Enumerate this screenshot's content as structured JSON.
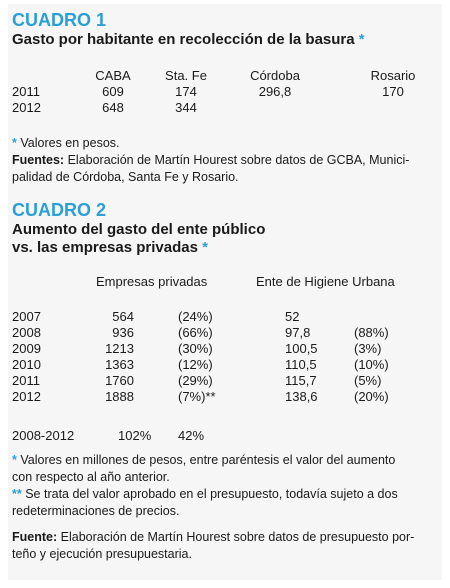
{
  "cuadro1": {
    "heading": "CUADRO 1",
    "title": "Gasto por habitante en recolección de la basura",
    "title_mark": "*",
    "columns": [
      "CABA",
      "Sta. Fe",
      "Córdoba",
      "Rosario"
    ],
    "rows": [
      {
        "year": "2011",
        "caba": "609",
        "stafe": "174",
        "cordoba": "296,8",
        "rosario": "170"
      },
      {
        "year": "2012",
        "caba": "648",
        "stafe": "344",
        "cordoba": "",
        "rosario": ""
      }
    ],
    "note_mark": "*",
    "note": "Valores en pesos.",
    "sources_label": "Fuentes:",
    "sources_line1": "Elaboración de Martín Hourest sobre datos de GCBA, Munici-",
    "sources_line2": "palidad de Córdoba, Santa Fe y Rosario."
  },
  "cuadro2": {
    "heading": "CUADRO 2",
    "title_line1": "Aumento del gasto del ente público",
    "title_line2": "vs. las empresas privadas",
    "title_mark": "*",
    "col_private": "Empresas privadas",
    "col_public": "Ente de Higiene Urbana",
    "rows": [
      {
        "year": "2007",
        "priv": "564",
        "priv_pct": "(24%)",
        "pub": "52",
        "pub_pct": ""
      },
      {
        "year": "2008",
        "priv": "936",
        "priv_pct": "(66%)",
        "pub": "97,8",
        "pub_pct": "(88%)"
      },
      {
        "year": "2009",
        "priv": "1213",
        "priv_pct": "(30%)",
        "pub": "100,5",
        "pub_pct": "(3%)"
      },
      {
        "year": "2010",
        "priv": "1363",
        "priv_pct": "(12%)",
        "pub": "110,5",
        "pub_pct": "(10%)"
      },
      {
        "year": "2011",
        "priv": "1760",
        "priv_pct": "(29%)",
        "pub": "115,7",
        "pub_pct": "(5%)"
      },
      {
        "year": "2012",
        "priv": "1888",
        "priv_pct": "(7%)**",
        "pub": "138,6",
        "pub_pct": "(20%)"
      }
    ],
    "total": {
      "period": "2008-2012",
      "priv": "102%",
      "pub": "42%"
    },
    "note1_mark": "*",
    "note1_line1": "Valores en millones de pesos, entre paréntesis el valor del aumento",
    "note1_line2": "con respecto al año anterior.",
    "note2_mark": "**",
    "note2_line1": "Se trata del valor aprobado en el presupuesto, todavía sujeto a dos",
    "note2_line2": "redeterminaciones de precios.",
    "source_label": "Fuente:",
    "source_line1": "Elaboración de Martín Hourest sobre datos de presupuesto por-",
    "source_line2": "teño y ejecución presupuestaria."
  }
}
